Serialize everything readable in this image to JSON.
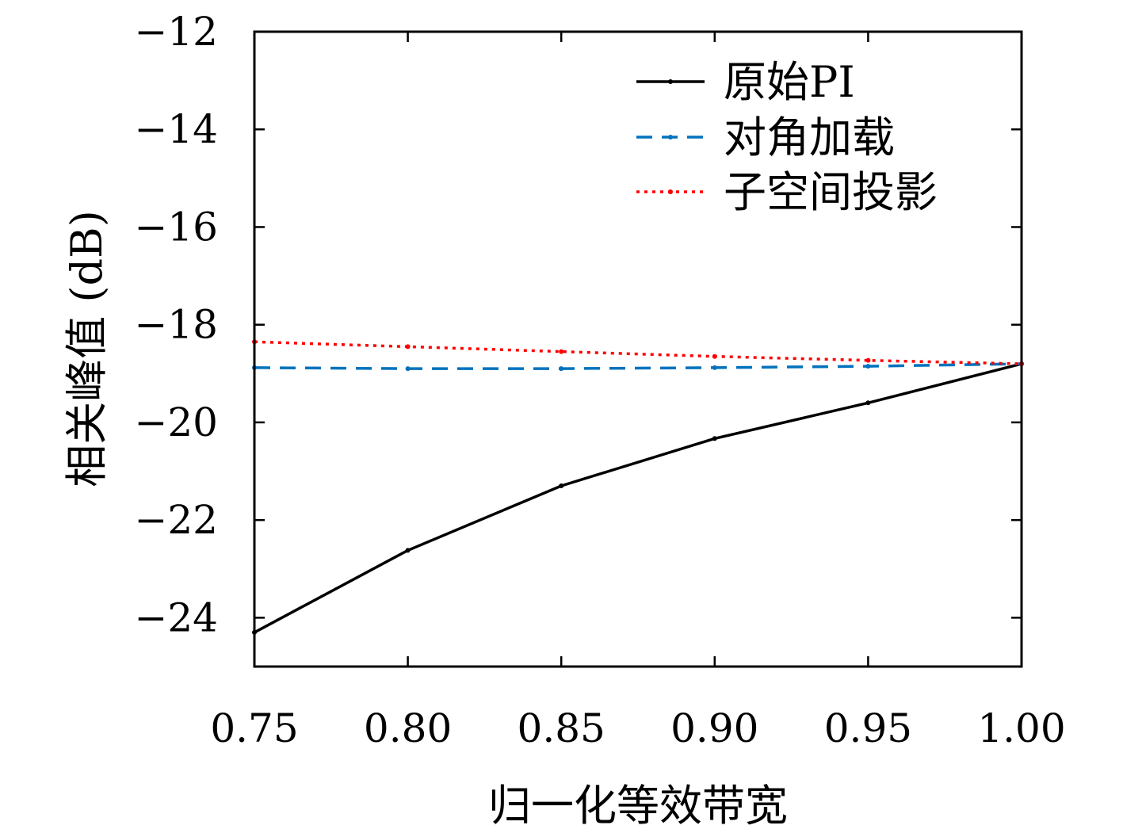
{
  "chart_data": {
    "type": "line",
    "xlabel": "归一化等效带宽",
    "ylabel": "相关峰值 (dB)",
    "xlim": [
      0.75,
      1.0
    ],
    "ylim": [
      -25,
      -12
    ],
    "xticks": [
      {
        "value": 0.75,
        "label": "0.75"
      },
      {
        "value": 0.8,
        "label": "0.80"
      },
      {
        "value": 0.85,
        "label": "0.85"
      },
      {
        "value": 0.9,
        "label": "0.90"
      },
      {
        "value": 0.95,
        "label": "0.95"
      },
      {
        "value": 1.0,
        "label": "1.00"
      }
    ],
    "yticks": [
      {
        "value": -12,
        "label": "−12"
      },
      {
        "value": -14,
        "label": "−14"
      },
      {
        "value": -16,
        "label": "−16"
      },
      {
        "value": -18,
        "label": "−18"
      },
      {
        "value": -20,
        "label": "−20"
      },
      {
        "value": -22,
        "label": "−22"
      },
      {
        "value": -24,
        "label": "−24"
      }
    ],
    "grid": false,
    "legend_position": "top-right",
    "x": [
      0.75,
      0.8,
      0.85,
      0.9,
      0.95,
      1.0
    ],
    "series": [
      {
        "name": "原始PI",
        "color": "#000000",
        "style": "solid",
        "values": [
          -24.3,
          -22.62,
          -21.3,
          -20.33,
          -19.6,
          -18.8
        ]
      },
      {
        "name": "对角加载",
        "color": "#0072BD",
        "style": "dashed",
        "values": [
          -18.88,
          -18.9,
          -18.9,
          -18.88,
          -18.85,
          -18.8
        ]
      },
      {
        "name": "子空间投影",
        "color": "#FF0000",
        "style": "dotted",
        "values": [
          -18.35,
          -18.45,
          -18.55,
          -18.65,
          -18.73,
          -18.8
        ]
      }
    ]
  }
}
